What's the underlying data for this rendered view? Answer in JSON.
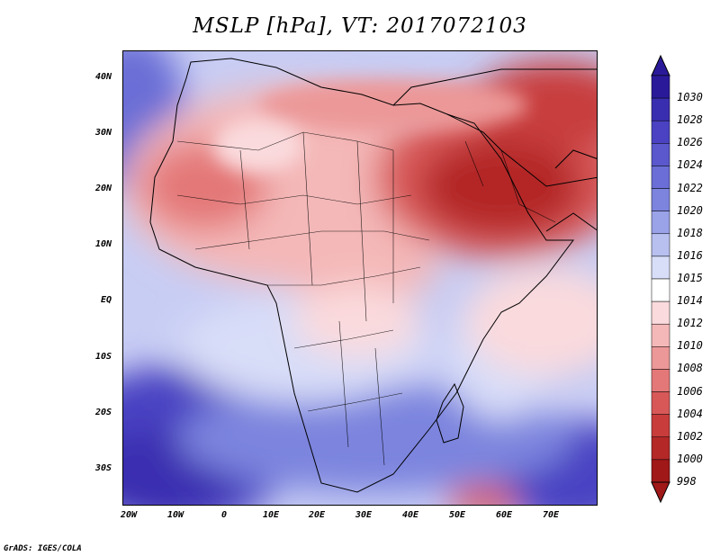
{
  "title": "MSLP [hPa], VT: 2017072103",
  "footer": "GrADS: IGES/COLA",
  "lat_labels": [
    "40N",
    "30N",
    "20N",
    "10N",
    "EQ",
    "10S",
    "20S",
    "30S"
  ],
  "lon_labels": [
    "20W",
    "10W",
    "0",
    "10E",
    "20E",
    "30E",
    "40E",
    "50E",
    "60E",
    "70E"
  ],
  "colorbar": {
    "levels": [
      "1030",
      "1028",
      "1026",
      "1024",
      "1022",
      "1020",
      "1018",
      "1016",
      "1015",
      "1014",
      "1012",
      "1010",
      "1008",
      "1006",
      "1004",
      "1002",
      "1000",
      "998"
    ],
    "colors": [
      "#2a1a9a",
      "#3a2eb0",
      "#4a42c2",
      "#5a58cc",
      "#6a6ed6",
      "#7c84de",
      "#9aa2e8",
      "#b8c0f0",
      "#d8ddf8",
      "#ffffff",
      "#fadadd",
      "#f4b8b8",
      "#ec9898",
      "#e47878",
      "#d85858",
      "#c83c3c",
      "#b42828",
      "#a01818"
    ]
  },
  "map": {
    "variable": "MSLP",
    "units": "hPa",
    "valid_time": "2017072103",
    "lon_range": [
      -23,
      80
    ],
    "lat_range": [
      -37,
      45
    ]
  }
}
